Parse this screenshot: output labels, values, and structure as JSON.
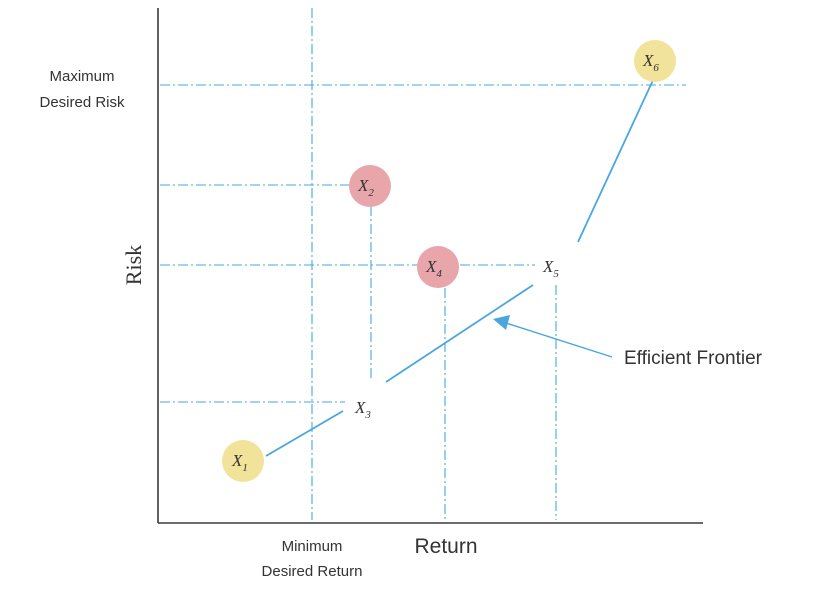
{
  "diagram": {
    "y_axis_label": "Risk",
    "x_axis_label": "Return",
    "max_risk_label_line1": "Maximum",
    "max_risk_label_line2": "Desired Risk",
    "min_return_label_line1": "Minimum",
    "min_return_label_line2": "Desired Return",
    "frontier_label": "Efficient Frontier",
    "colors": {
      "guide": "#45a8e0",
      "frontier": "#4aa6df",
      "efficient_point": "#f2e39a",
      "inefficient_point": "#e8a6aa",
      "axis": "#3a3a3a"
    },
    "points": [
      {
        "name": "X",
        "sub": "1",
        "status": "efficient-highlight"
      },
      {
        "name": "X",
        "sub": "2",
        "status": "inefficient"
      },
      {
        "name": "X",
        "sub": "3",
        "status": "frontier"
      },
      {
        "name": "X",
        "sub": "4",
        "status": "inefficient"
      },
      {
        "name": "X",
        "sub": "5",
        "status": "frontier"
      },
      {
        "name": "X",
        "sub": "6",
        "status": "efficient-highlight"
      }
    ]
  }
}
